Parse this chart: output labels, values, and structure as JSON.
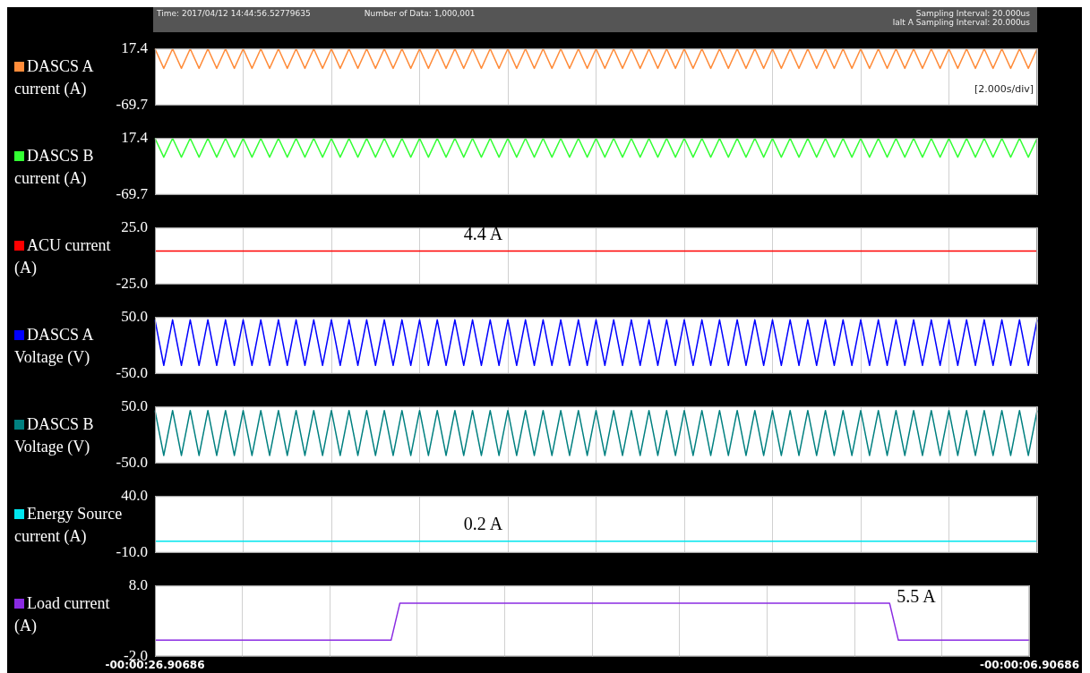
{
  "chart_data": [
    {
      "type": "line",
      "annotations": [
        "Time: 2017/04/12 14:44:56.52779635",
        "Number of Data: 1,000,001",
        "Sampling Interval:  20.000us",
        "lalt A Sampling Interval:  20.000us",
        "[2.000s/div]"
      ],
      "categories": [
        null,
        null,
        null,
        null,
        null,
        null,
        null,
        null,
        null,
        null,
        null,
        null,
        null,
        null,
        null,
        null,
        null,
        null,
        null,
        null,
        null,
        null,
        null,
        null,
        null,
        null,
        null,
        null,
        null,
        null,
        null,
        null,
        null,
        null,
        null,
        null,
        null,
        null,
        null,
        null,
        null,
        null,
        null,
        null,
        null,
        null,
        null,
        null,
        null,
        null,
        null,
        null,
        null,
        null,
        null,
        null,
        null,
        null,
        null,
        null,
        null,
        null,
        null,
        null,
        null,
        null,
        null,
        null,
        null,
        null,
        null,
        null,
        null,
        null,
        null,
        null,
        null,
        null,
        null,
        null,
        null,
        null,
        null,
        null,
        null,
        null,
        null,
        null,
        null,
        null,
        null,
        null,
        null,
        null,
        null,
        null,
        null,
        null,
        null,
        null,
        null
      ],
      "series": [
        {
          "name": "DASCS A current (A)",
          "color": "#ff8c3a",
          "values": [
            17,
            -13,
            17,
            -13,
            17,
            -13,
            17,
            -13,
            17,
            -13,
            17,
            -13,
            17,
            -13,
            17,
            -13,
            17,
            -13,
            17,
            -13,
            17,
            -13,
            17,
            -13,
            17,
            -13,
            17,
            -13,
            17,
            -13,
            17,
            -13,
            17,
            -13,
            17,
            -13,
            17,
            -13,
            17,
            -13,
            17,
            -13,
            17,
            -13,
            17,
            -13,
            17,
            -13,
            17,
            -13,
            17,
            -13,
            17,
            -13,
            17,
            -13,
            17,
            -13,
            17,
            -13,
            17,
            -13,
            17,
            -13,
            17,
            -13,
            17,
            -13,
            17,
            -13,
            17,
            -13,
            17,
            -13,
            17,
            -13,
            17,
            -13,
            17,
            -13,
            17,
            -13,
            17,
            -13,
            17,
            -13,
            17,
            -13,
            17,
            -13,
            17,
            -13,
            17,
            -13,
            17,
            -13,
            17,
            -13,
            17,
            -13,
            17
          ]
        }
      ],
      "ylim": [
        -69.7,
        17.4
      ],
      "yticks": [
        -69.7,
        17.4
      ],
      "grid": "x",
      "legend": "left",
      "tick_labels": "y"
    },
    {
      "type": "line",
      "categories": [
        null,
        null,
        null,
        null,
        null,
        null,
        null,
        null,
        null,
        null,
        null,
        null,
        null,
        null,
        null,
        null,
        null,
        null,
        null,
        null,
        null,
        null,
        null,
        null,
        null,
        null,
        null,
        null,
        null,
        null,
        null,
        null,
        null,
        null,
        null,
        null,
        null,
        null,
        null,
        null,
        null,
        null,
        null,
        null,
        null,
        null,
        null,
        null,
        null,
        null,
        null,
        null,
        null,
        null,
        null,
        null,
        null,
        null,
        null,
        null,
        null,
        null,
        null,
        null,
        null,
        null,
        null,
        null,
        null,
        null,
        null,
        null,
        null,
        null,
        null,
        null,
        null,
        null,
        null,
        null,
        null,
        null,
        null,
        null,
        null,
        null,
        null,
        null,
        null,
        null,
        null,
        null,
        null,
        null,
        null,
        null,
        null,
        null,
        null,
        null,
        null
      ],
      "series": [
        {
          "name": "DASCS B current (A)",
          "color": "#33ff33",
          "values": [
            17,
            -12,
            17,
            -12,
            17,
            -12,
            17,
            -12,
            17,
            -12,
            17,
            -12,
            17,
            -12,
            17,
            -12,
            17,
            -12,
            17,
            -12,
            17,
            -12,
            17,
            -12,
            17,
            -12,
            17,
            -12,
            17,
            -12,
            17,
            -12,
            17,
            -12,
            17,
            -12,
            17,
            -12,
            17,
            -12,
            17,
            -12,
            17,
            -12,
            17,
            -12,
            17,
            -12,
            17,
            -12,
            17,
            -12,
            17,
            -12,
            17,
            -12,
            17,
            -12,
            17,
            -12,
            17,
            -12,
            17,
            -12,
            17,
            -12,
            17,
            -12,
            17,
            -12,
            17,
            -12,
            17,
            -12,
            17,
            -12,
            17,
            -12,
            17,
            -12,
            17,
            -12,
            17,
            -12,
            17,
            -12,
            17,
            -12,
            17,
            -12,
            17,
            -12,
            17,
            -12,
            17,
            -12,
            17,
            -12,
            17,
            -12,
            17
          ]
        }
      ],
      "ylim": [
        -69.7,
        17.4
      ],
      "yticks": [
        -69.7,
        17.4
      ],
      "grid": "x",
      "legend": "left",
      "tick_labels": "y"
    },
    {
      "type": "line",
      "annotations": [
        "4.4 A"
      ],
      "categories": [
        null,
        null,
        null,
        null,
        null,
        null,
        null,
        null,
        null,
        null,
        null,
        null,
        null,
        null,
        null,
        null,
        null,
        null,
        null,
        null,
        null,
        null,
        null,
        null,
        null,
        null,
        null,
        null,
        null,
        null,
        null,
        null,
        null,
        null,
        null,
        null,
        null,
        null,
        null,
        null,
        null,
        null,
        null,
        null,
        null,
        null,
        null,
        null,
        null,
        null,
        null,
        null,
        null,
        null,
        null,
        null,
        null,
        null,
        null,
        null,
        null,
        null,
        null,
        null,
        null,
        null,
        null,
        null,
        null,
        null,
        null,
        null,
        null,
        null,
        null,
        null,
        null,
        null,
        null,
        null,
        null,
        null,
        null,
        null,
        null,
        null,
        null,
        null,
        null,
        null,
        null,
        null,
        null,
        null,
        null,
        null,
        null,
        null,
        null,
        null,
        null
      ],
      "series": [
        {
          "name": "ACU current (A)",
          "color": "#ff0000",
          "values": [
            4.4,
            4.4,
            4.4,
            4.4,
            4.4,
            4.4,
            4.4,
            4.4,
            4.4,
            4.4,
            4.4,
            4.4,
            4.4,
            4.4,
            4.4,
            4.4,
            4.4,
            4.4,
            4.4,
            4.4,
            4.4,
            4.4,
            4.4,
            4.4,
            4.4,
            4.4,
            4.4,
            4.4,
            4.4,
            4.4,
            4.4,
            4.4,
            4.4,
            4.4,
            4.4,
            4.4,
            4.4,
            4.4,
            4.4,
            4.4,
            4.4,
            4.4,
            4.4,
            4.4,
            4.4,
            4.4,
            4.4,
            4.4,
            4.4,
            4.4,
            4.4,
            4.4,
            4.4,
            4.4,
            4.4,
            4.4,
            4.4,
            4.4,
            4.4,
            4.4,
            4.4,
            4.4,
            4.4,
            4.4,
            4.4,
            4.4,
            4.4,
            4.4,
            4.4,
            4.4,
            4.4,
            4.4,
            4.4,
            4.4,
            4.4,
            4.4,
            4.4,
            4.4,
            4.4,
            4.4,
            4.4,
            4.4,
            4.4,
            4.4,
            4.4,
            4.4,
            4.4,
            4.4,
            4.4,
            4.4,
            4.4,
            4.4,
            4.4,
            4.4,
            4.4,
            4.4,
            4.4,
            4.4,
            4.4,
            4.4,
            4.4
          ]
        }
      ],
      "ylim": [
        -25,
        25
      ],
      "yticks": [
        {
          "value": -25,
          "label": "-25.0"
        },
        {
          "value": 25,
          "label": "25.0"
        }
      ],
      "grid": "x",
      "legend": "left",
      "tick_labels": "y"
    },
    {
      "type": "line",
      "categories": [
        null,
        null,
        null,
        null,
        null,
        null,
        null,
        null,
        null,
        null,
        null,
        null,
        null,
        null,
        null,
        null,
        null,
        null,
        null,
        null,
        null,
        null,
        null,
        null,
        null,
        null,
        null,
        null,
        null,
        null,
        null,
        null,
        null,
        null,
        null,
        null,
        null,
        null,
        null,
        null,
        null,
        null,
        null,
        null,
        null,
        null,
        null,
        null,
        null,
        null,
        null,
        null,
        null,
        null,
        null,
        null,
        null,
        null,
        null,
        null,
        null,
        null,
        null,
        null,
        null,
        null,
        null,
        null,
        null,
        null,
        null,
        null,
        null,
        null,
        null,
        null,
        null,
        null,
        null,
        null,
        null,
        null,
        null,
        null,
        null,
        null,
        null,
        null,
        null,
        null,
        null,
        null,
        null,
        null,
        null,
        null,
        null,
        null,
        null,
        null,
        null
      ],
      "series": [
        {
          "name": "DASCS A Voltage (V)",
          "color": "#0000ff",
          "values": [
            45,
            -35,
            45,
            -35,
            45,
            -35,
            45,
            -35,
            45,
            -35,
            45,
            -35,
            45,
            -35,
            45,
            -35,
            45,
            -35,
            45,
            -35,
            45,
            -35,
            45,
            -35,
            45,
            -35,
            45,
            -35,
            45,
            -35,
            45,
            -35,
            45,
            -35,
            45,
            -35,
            45,
            -35,
            45,
            -35,
            45,
            -35,
            45,
            -35,
            45,
            -35,
            45,
            -35,
            45,
            -35,
            45,
            -35,
            45,
            -35,
            45,
            -35,
            45,
            -35,
            45,
            -35,
            45,
            -35,
            45,
            -35,
            45,
            -35,
            45,
            -35,
            45,
            -35,
            45,
            -35,
            45,
            -35,
            45,
            -35,
            45,
            -35,
            45,
            -35,
            45,
            -35,
            45,
            -35,
            45,
            -35,
            45,
            -35,
            45,
            -35,
            45,
            -35,
            45,
            -35,
            45,
            -35,
            45,
            -35,
            45,
            -35,
            45
          ]
        }
      ],
      "ylim": [
        -50,
        50
      ],
      "yticks": [
        {
          "value": -50,
          "label": "-50.0"
        },
        {
          "value": 50,
          "label": "50.0"
        }
      ],
      "grid": "x",
      "legend": "left",
      "tick_labels": "y"
    },
    {
      "type": "line",
      "categories": [
        null,
        null,
        null,
        null,
        null,
        null,
        null,
        null,
        null,
        null,
        null,
        null,
        null,
        null,
        null,
        null,
        null,
        null,
        null,
        null,
        null,
        null,
        null,
        null,
        null,
        null,
        null,
        null,
        null,
        null,
        null,
        null,
        null,
        null,
        null,
        null,
        null,
        null,
        null,
        null,
        null,
        null,
        null,
        null,
        null,
        null,
        null,
        null,
        null,
        null,
        null,
        null,
        null,
        null,
        null,
        null,
        null,
        null,
        null,
        null,
        null,
        null,
        null,
        null,
        null,
        null,
        null,
        null,
        null,
        null,
        null,
        null,
        null,
        null,
        null,
        null,
        null,
        null,
        null,
        null,
        null,
        null,
        null,
        null,
        null,
        null,
        null,
        null,
        null,
        null,
        null,
        null,
        null,
        null,
        null,
        null,
        null,
        null,
        null,
        null,
        null
      ],
      "series": [
        {
          "name": "DASCS B Voltage (V)",
          "color": "#008080",
          "values": [
            43,
            -36,
            43,
            -36,
            43,
            -36,
            43,
            -36,
            43,
            -36,
            43,
            -36,
            43,
            -36,
            43,
            -36,
            43,
            -36,
            43,
            -36,
            43,
            -36,
            43,
            -36,
            43,
            -36,
            43,
            -36,
            43,
            -36,
            43,
            -36,
            43,
            -36,
            43,
            -36,
            43,
            -36,
            43,
            -36,
            43,
            -36,
            43,
            -36,
            43,
            -36,
            43,
            -36,
            43,
            -36,
            43,
            -36,
            43,
            -36,
            43,
            -36,
            43,
            -36,
            43,
            -36,
            43,
            -36,
            43,
            -36,
            43,
            -36,
            43,
            -36,
            43,
            -36,
            43,
            -36,
            43,
            -36,
            43,
            -36,
            43,
            -36,
            43,
            -36,
            43,
            -36,
            43,
            -36,
            43,
            -36,
            43,
            -36,
            43,
            -36,
            43,
            -36,
            43,
            -36,
            43,
            -36,
            43,
            -36,
            43,
            -36,
            43
          ]
        }
      ],
      "ylim": [
        -50,
        50
      ],
      "yticks": [
        {
          "value": -50,
          "label": "-50.0"
        },
        {
          "value": 50,
          "label": "50.0"
        }
      ],
      "grid": "x",
      "legend": "left",
      "tick_labels": "y"
    },
    {
      "type": "line",
      "annotations": [
        "0.2 A"
      ],
      "categories": [
        null,
        null,
        null,
        null,
        null,
        null,
        null,
        null,
        null,
        null,
        null,
        null,
        null,
        null,
        null,
        null,
        null,
        null,
        null,
        null,
        null,
        null,
        null,
        null,
        null,
        null,
        null,
        null,
        null,
        null,
        null,
        null,
        null,
        null,
        null,
        null,
        null,
        null,
        null,
        null,
        null,
        null,
        null,
        null,
        null,
        null,
        null,
        null,
        null,
        null,
        null,
        null,
        null,
        null,
        null,
        null,
        null,
        null,
        null,
        null,
        null,
        null,
        null,
        null,
        null,
        null,
        null,
        null,
        null,
        null,
        null,
        null,
        null,
        null,
        null,
        null,
        null,
        null,
        null,
        null,
        null,
        null,
        null,
        null,
        null,
        null,
        null,
        null,
        null,
        null,
        null,
        null,
        null,
        null,
        null,
        null,
        null,
        null,
        null,
        null,
        null
      ],
      "series": [
        {
          "name": "Energy Source current (A)",
          "color": "#00e5ee",
          "values": [
            0.2,
            0.2,
            0.2,
            0.2,
            0.2,
            0.2,
            0.2,
            0.2,
            0.2,
            0.2,
            0.2,
            0.2,
            0.2,
            0.2,
            0.2,
            0.2,
            0.2,
            0.2,
            0.2,
            0.2,
            0.2,
            0.2,
            0.2,
            0.2,
            0.2,
            0.2,
            0.2,
            0.2,
            0.2,
            0.2,
            0.2,
            0.2,
            0.2,
            0.2,
            0.2,
            0.2,
            0.2,
            0.2,
            0.2,
            0.2,
            0.2,
            0.2,
            0.2,
            0.2,
            0.2,
            0.2,
            0.2,
            0.2,
            0.2,
            0.2,
            0.2,
            0.2,
            0.2,
            0.2,
            0.2,
            0.2,
            0.2,
            0.2,
            0.2,
            0.2,
            0.2,
            0.2,
            0.2,
            0.2,
            0.2,
            0.2,
            0.2,
            0.2,
            0.2,
            0.2,
            0.2,
            0.2,
            0.2,
            0.2,
            0.2,
            0.2,
            0.2,
            0.2,
            0.2,
            0.2,
            0.2,
            0.2,
            0.2,
            0.2,
            0.2,
            0.2,
            0.2,
            0.2,
            0.2,
            0.2,
            0.2,
            0.2,
            0.2,
            0.2,
            0.2,
            0.2,
            0.2,
            0.2,
            0.2,
            0.2,
            0.2
          ]
        }
      ],
      "ylim": [
        -10,
        40
      ],
      "yticks": [
        {
          "value": -10,
          "label": "-10.0"
        },
        {
          "value": 40,
          "label": "40.0"
        }
      ],
      "grid": "x",
      "legend": "left",
      "tick_labels": "y"
    },
    {
      "type": "line",
      "annotations": [
        "5.5 A"
      ],
      "categories": [
        "-00:00:26.90686",
        null,
        null,
        null,
        null,
        null,
        null,
        null,
        null,
        null,
        null,
        null,
        null,
        null,
        null,
        null,
        null,
        null,
        null,
        null,
        null,
        null,
        null,
        null,
        null,
        null,
        null,
        null,
        null,
        null,
        null,
        null,
        null,
        null,
        null,
        null,
        null,
        null,
        null,
        null,
        null,
        null,
        null,
        null,
        null,
        null,
        null,
        null,
        null,
        null,
        null,
        null,
        null,
        null,
        null,
        null,
        null,
        null,
        null,
        null,
        null,
        null,
        null,
        null,
        null,
        null,
        null,
        null,
        null,
        null,
        null,
        null,
        null,
        null,
        null,
        null,
        null,
        null,
        null,
        null,
        null,
        null,
        null,
        null,
        null,
        null,
        null,
        null,
        null,
        null,
        null,
        null,
        null,
        null,
        null,
        null,
        null,
        null,
        null,
        null,
        "-00:00:06.90686"
      ],
      "series": [
        {
          "name": "Load current (A)",
          "color": "#8a2be2",
          "values": [
            0.3,
            0.3,
            0.3,
            0.3,
            0.3,
            0.3,
            0.3,
            0.3,
            0.3,
            0.3,
            0.3,
            0.3,
            0.3,
            0.3,
            0.3,
            0.3,
            0.3,
            0.3,
            0.3,
            0.3,
            0.3,
            0.3,
            0.3,
            0.3,
            0.3,
            0.3,
            0.3,
            0.3,
            5.5,
            5.5,
            5.5,
            5.5,
            5.5,
            5.5,
            5.5,
            5.5,
            5.5,
            5.5,
            5.5,
            5.5,
            5.5,
            5.5,
            5.5,
            5.5,
            5.5,
            5.5,
            5.5,
            5.5,
            5.5,
            5.5,
            5.5,
            5.5,
            5.5,
            5.5,
            5.5,
            5.5,
            5.5,
            5.5,
            5.5,
            5.5,
            5.5,
            5.5,
            5.5,
            5.5,
            5.5,
            5.5,
            5.5,
            5.5,
            5.5,
            5.5,
            5.5,
            5.5,
            5.5,
            5.5,
            5.5,
            5.5,
            5.5,
            5.5,
            5.5,
            5.5,
            5.5,
            5.5,
            5.5,
            5.5,
            5.5,
            0.3,
            0.3,
            0.3,
            0.3,
            0.3,
            0.3,
            0.3,
            0.3,
            0.3,
            0.3,
            0.3,
            0.3,
            0.3,
            0.3,
            0.3,
            0.3
          ]
        }
      ],
      "ylim": [
        -2,
        8
      ],
      "yticks": [
        {
          "value": -2,
          "label": "-2.0"
        },
        {
          "value": 8,
          "label": "8.0"
        }
      ],
      "grid": "x",
      "legend": "left"
    }
  ]
}
